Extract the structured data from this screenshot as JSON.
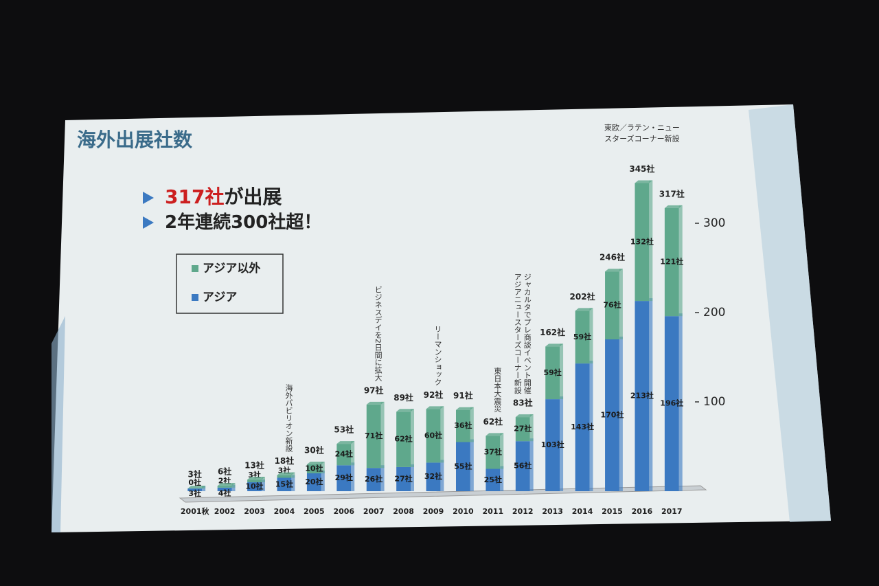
{
  "chart_data": {
    "type": "stacked_bar",
    "title": "海外出展社数",
    "bullets": [
      [
        "317社",
        "が出展"
      ],
      [
        "2年連続300社超！"
      ]
    ],
    "categories": [
      "2001秋",
      "2002",
      "2003",
      "2004",
      "2005",
      "2006",
      "2007",
      "2008",
      "2009",
      "2010",
      "2011",
      "2012",
      "2013",
      "2014",
      "2015",
      "2016",
      "2017"
    ],
    "series": [
      {
        "name": "アジア以外",
        "color": "#5fa88c",
        "values": [
          0,
          2,
          3,
          3,
          10,
          24,
          71,
          62,
          60,
          36,
          37,
          27,
          59,
          59,
          76,
          132,
          121
        ],
        "value_labels": [
          "0社",
          "2社",
          "3社",
          "3社",
          "10社",
          "24社",
          "71社",
          "62社",
          "60社",
          "36社",
          "37社",
          "27社",
          "59社",
          "59社",
          "76社",
          "132社",
          "121社"
        ]
      },
      {
        "name": "アジア",
        "color": "#3b79c1",
        "values": [
          3,
          4,
          10,
          15,
          20,
          29,
          26,
          27,
          32,
          55,
          25,
          56,
          103,
          143,
          170,
          213,
          196
        ],
        "value_labels": [
          "3社",
          "4社",
          "10社",
          "15社",
          "20社",
          "29社",
          "26社",
          "27社",
          "32社",
          "55社",
          "25社",
          "56社",
          "103社",
          "143社",
          "170社",
          "213社",
          "196社"
        ]
      }
    ],
    "totals": [
      3,
      6,
      13,
      18,
      30,
      53,
      97,
      89,
      92,
      91,
      62,
      83,
      162,
      202,
      246,
      345,
      317
    ],
    "total_labels": [
      "3社",
      "6社",
      "13社",
      "18社",
      "30社",
      "53社",
      "97社",
      "89社",
      "92社",
      "91社",
      "62社",
      "83社",
      "162社",
      "202社",
      "246社",
      "345社",
      "317社"
    ],
    "ylim": [
      0,
      360
    ],
    "yticks": [
      100,
      200,
      300
    ],
    "annotations": [
      {
        "category": "2004",
        "orientation": "vertical",
        "lines": [
          "海外パビリオン新設"
        ]
      },
      {
        "category": "2007",
        "orientation": "vertical",
        "lines": [
          "ビジネスデイを2日間に拡大"
        ]
      },
      {
        "category": "2009",
        "orientation": "vertical",
        "lines": [
          "リーマンショック"
        ]
      },
      {
        "category": "2011",
        "orientation": "vertical",
        "lines": [
          "東日本大震災"
        ]
      },
      {
        "category": "2012",
        "orientation": "vertical",
        "lines": [
          "ジャカルタでプレ商談イベント開催",
          "アジアニュースターズコーナー新設"
        ]
      },
      {
        "category": "2016",
        "orientation": "horizontal",
        "lines": [
          "東欧／ラテン・ニュー",
          "スターズコーナー新設"
        ]
      }
    ]
  }
}
